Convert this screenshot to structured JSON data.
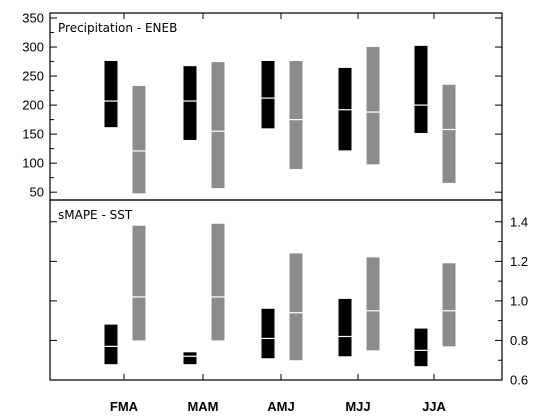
{
  "chart_data": [
    {
      "type": "bar",
      "subtype": "floating-range-with-median",
      "title": "Precipitation - ENEB",
      "categories": [
        "FMA",
        "MAM",
        "AMJ",
        "MJJ",
        "JJA"
      ],
      "ylim": [
        40,
        350
      ],
      "yticks": [
        50,
        100,
        150,
        200,
        250,
        300,
        350
      ],
      "yaxis_side": "left",
      "series": [
        {
          "color": "#000000",
          "median_color": "#ffffff",
          "low": [
            162,
            140,
            160,
            122,
            152
          ],
          "high": [
            276,
            267,
            276,
            264,
            302
          ],
          "median": [
            207,
            207,
            212,
            192,
            200
          ]
        },
        {
          "color": "#8c8c8c",
          "median_color": "#ffffff",
          "low": [
            48,
            57,
            90,
            98,
            66
          ],
          "high": [
            233,
            274,
            276,
            300,
            235
          ],
          "median": [
            121,
            155,
            175,
            188,
            158
          ]
        }
      ]
    },
    {
      "type": "bar",
      "subtype": "floating-range-with-median",
      "title": "sMAPE - SST",
      "categories": [
        "FMA",
        "MAM",
        "AMJ",
        "MJJ",
        "JJA"
      ],
      "ylim": [
        0.6,
        1.5
      ],
      "yticks": [
        "0.6",
        "0.8",
        "1.0",
        "1.2",
        "1.4"
      ],
      "yaxis_side": "right",
      "series": [
        {
          "color": "#000000",
          "median_color": "#ffffff",
          "low": [
            0.68,
            0.68,
            0.71,
            0.72,
            0.67
          ],
          "high": [
            0.88,
            0.74,
            0.96,
            1.01,
            0.86
          ],
          "median": [
            0.77,
            0.72,
            0.81,
            0.82,
            0.75
          ]
        },
        {
          "color": "#8c8c8c",
          "median_color": "#ffffff",
          "low": [
            0.8,
            0.8,
            0.7,
            0.75,
            0.77
          ],
          "high": [
            1.38,
            1.39,
            1.24,
            1.22,
            1.19
          ],
          "median": [
            1.02,
            1.02,
            0.94,
            0.95,
            0.95
          ]
        }
      ]
    }
  ]
}
